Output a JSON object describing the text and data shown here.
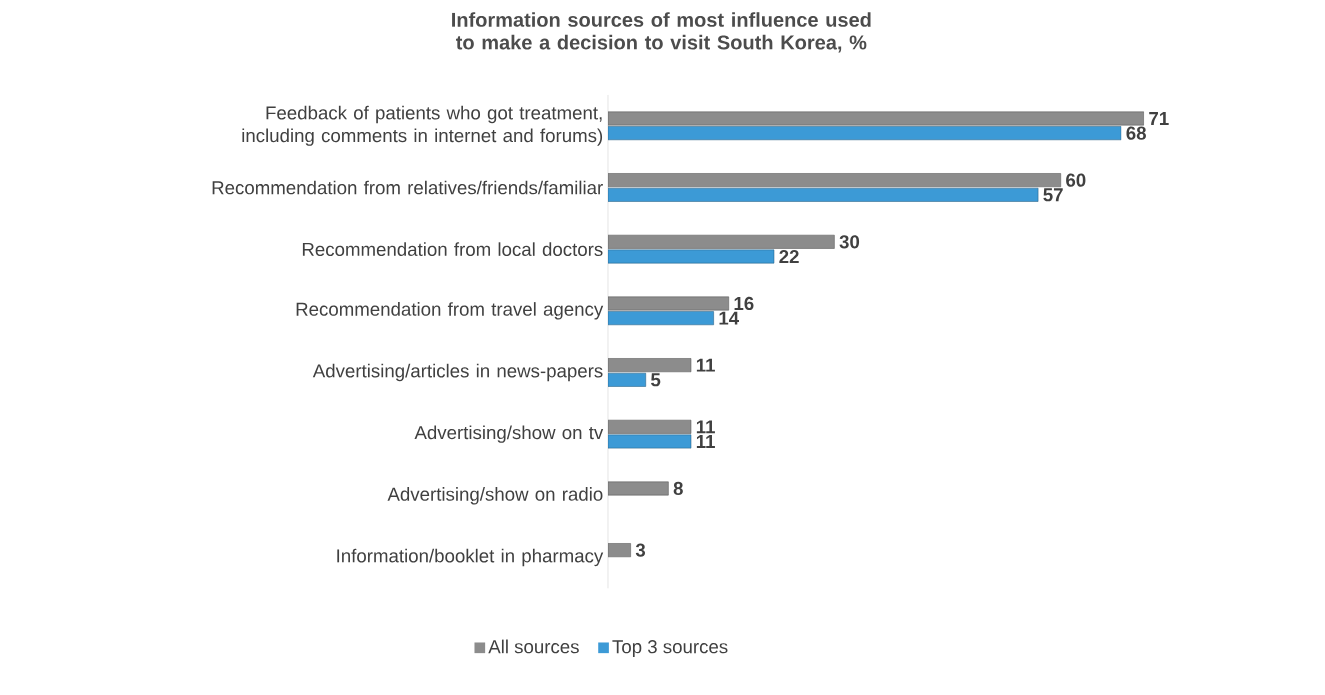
{
  "chart_data": {
    "type": "bar",
    "orientation": "horizontal",
    "title": "Information sources  of most  influence used to make a decision to visit  South Korea, %",
    "categories": [
      "Feedback of patients who got treatment, including comments in internet and forums)",
      "Recommendation from relatives/friends/familiar",
      "Recommendation from local doctors",
      "Recommendation from travel agency",
      "Advertising/articles in news-papers",
      "Advertising/show on tv",
      "Advertising/show on radio",
      "Information/booklet in pharmacy"
    ],
    "series": [
      {
        "name": "All sources",
        "color": "#8c8c8c",
        "values": [
          71,
          60,
          30,
          16,
          11,
          11,
          8,
          3
        ]
      },
      {
        "name": "Top 3 sources",
        "color": "#3c9ad6",
        "values": [
          68,
          57,
          22,
          14,
          5,
          11,
          null,
          null
        ]
      }
    ],
    "data_labels": true,
    "legend": "bottom"
  }
}
